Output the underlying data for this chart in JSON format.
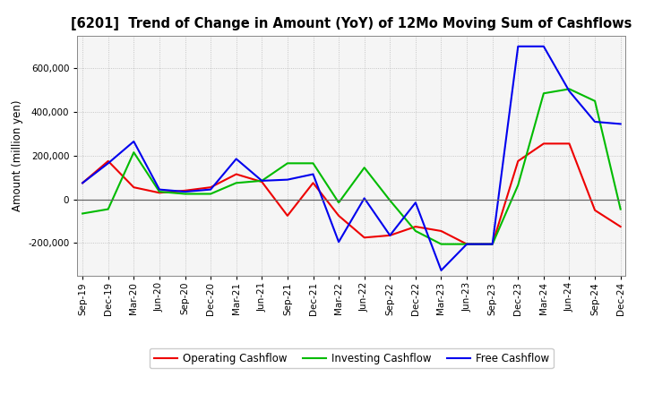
{
  "title": "[6201]  Trend of Change in Amount (YoY) of 12Mo Moving Sum of Cashflows",
  "ylabel": "Amount (million yen)",
  "background_color": "#ffffff",
  "plot_bg_color": "#f5f5f5",
  "grid_color": "#aaaaaa",
  "labels": [
    "Sep-19",
    "Dec-19",
    "Mar-20",
    "Jun-20",
    "Sep-20",
    "Dec-20",
    "Mar-21",
    "Jun-21",
    "Sep-21",
    "Dec-21",
    "Mar-22",
    "Jun-22",
    "Sep-22",
    "Dec-22",
    "Mar-23",
    "Jun-23",
    "Sep-23",
    "Dec-23",
    "Mar-24",
    "Jun-24",
    "Sep-24",
    "Dec-24"
  ],
  "operating": [
    75000,
    175000,
    55000,
    30000,
    40000,
    55000,
    115000,
    80000,
    -75000,
    75000,
    -75000,
    -175000,
    -165000,
    -125000,
    -145000,
    -205000,
    -205000,
    175000,
    255000,
    255000,
    -50000,
    -125000
  ],
  "investing": [
    -65000,
    -45000,
    215000,
    35000,
    25000,
    25000,
    75000,
    85000,
    165000,
    165000,
    -15000,
    145000,
    -5000,
    -145000,
    -205000,
    -205000,
    -205000,
    65000,
    485000,
    505000,
    450000,
    -45000
  ],
  "free": [
    75000,
    165000,
    265000,
    45000,
    35000,
    45000,
    185000,
    85000,
    90000,
    115000,
    -195000,
    5000,
    -165000,
    -15000,
    -325000,
    -205000,
    -205000,
    700000,
    700000,
    495000,
    355000,
    345000
  ],
  "op_color": "#ee0000",
  "inv_color": "#00bb00",
  "free_color": "#0000ee",
  "ylim": [
    -350000,
    750000
  ],
  "yticks": [
    -200000,
    0,
    200000,
    400000,
    600000
  ],
  "legend_labels": [
    "Operating Cashflow",
    "Investing Cashflow",
    "Free Cashflow"
  ]
}
